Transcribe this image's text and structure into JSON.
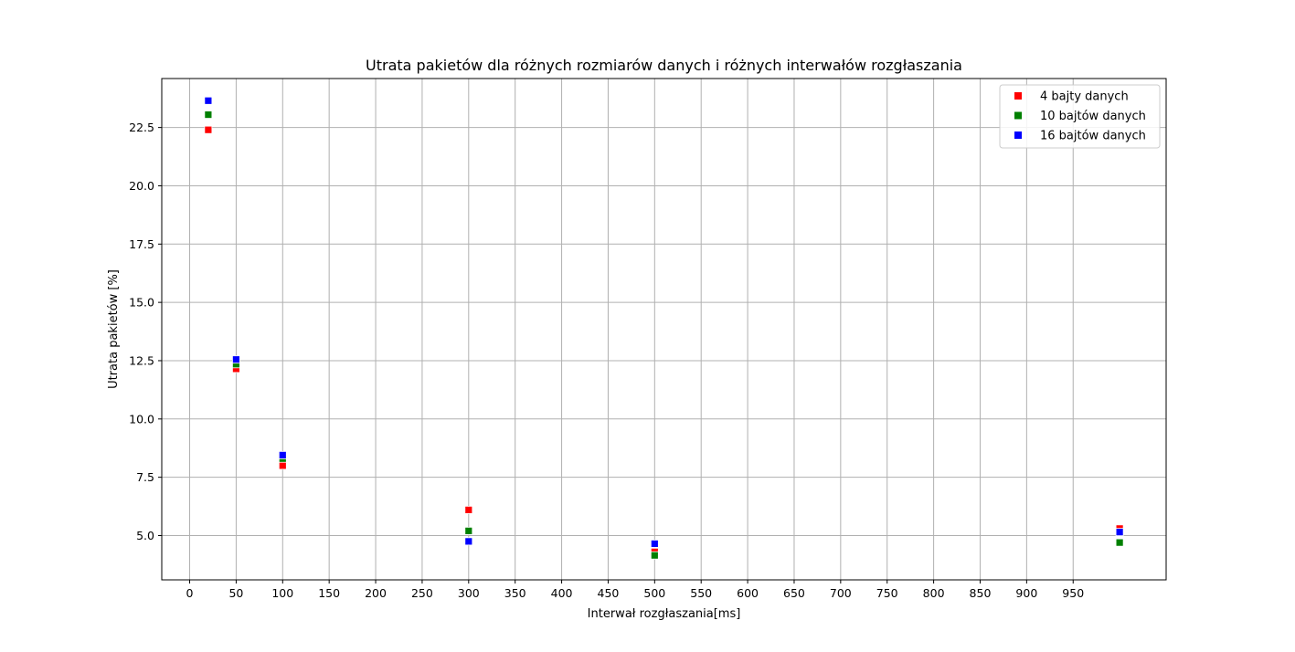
{
  "chart_data": {
    "type": "scatter",
    "title": "Utrata pakietów dla różnych rozmiarów danych i różnych interwałów rozgłaszania",
    "xlabel": "Interwał rozgłaszania[ms]",
    "ylabel": "Utrata pakietów [%]",
    "xlim": [
      -30,
      1050
    ],
    "ylim": [
      3.1,
      24.6
    ],
    "xticks": [
      0,
      50,
      100,
      150,
      200,
      250,
      300,
      350,
      400,
      450,
      500,
      550,
      600,
      650,
      700,
      750,
      800,
      850,
      900,
      950
    ],
    "yticks": [
      5.0,
      7.5,
      10.0,
      12.5,
      15.0,
      17.5,
      20.0,
      22.5
    ],
    "grid": true,
    "legend_position": "top-right",
    "series": [
      {
        "name": "4 bajty danych",
        "color": "#ff0000",
        "marker": "square",
        "x": [
          20,
          50,
          100,
          300,
          500,
          1000
        ],
        "y": [
          22.4,
          12.15,
          8.0,
          6.1,
          4.3,
          5.3
        ]
      },
      {
        "name": "10 bajtów danych",
        "color": "#008000",
        "marker": "square",
        "x": [
          20,
          50,
          100,
          300,
          500,
          1000
        ],
        "y": [
          23.05,
          12.35,
          8.3,
          5.2,
          4.15,
          4.7
        ]
      },
      {
        "name": "16 bajtów danych",
        "color": "#0000ff",
        "marker": "square",
        "x": [
          20,
          50,
          100,
          300,
          500,
          1000
        ],
        "y": [
          23.65,
          12.55,
          8.45,
          4.75,
          4.65,
          5.15
        ]
      }
    ]
  }
}
